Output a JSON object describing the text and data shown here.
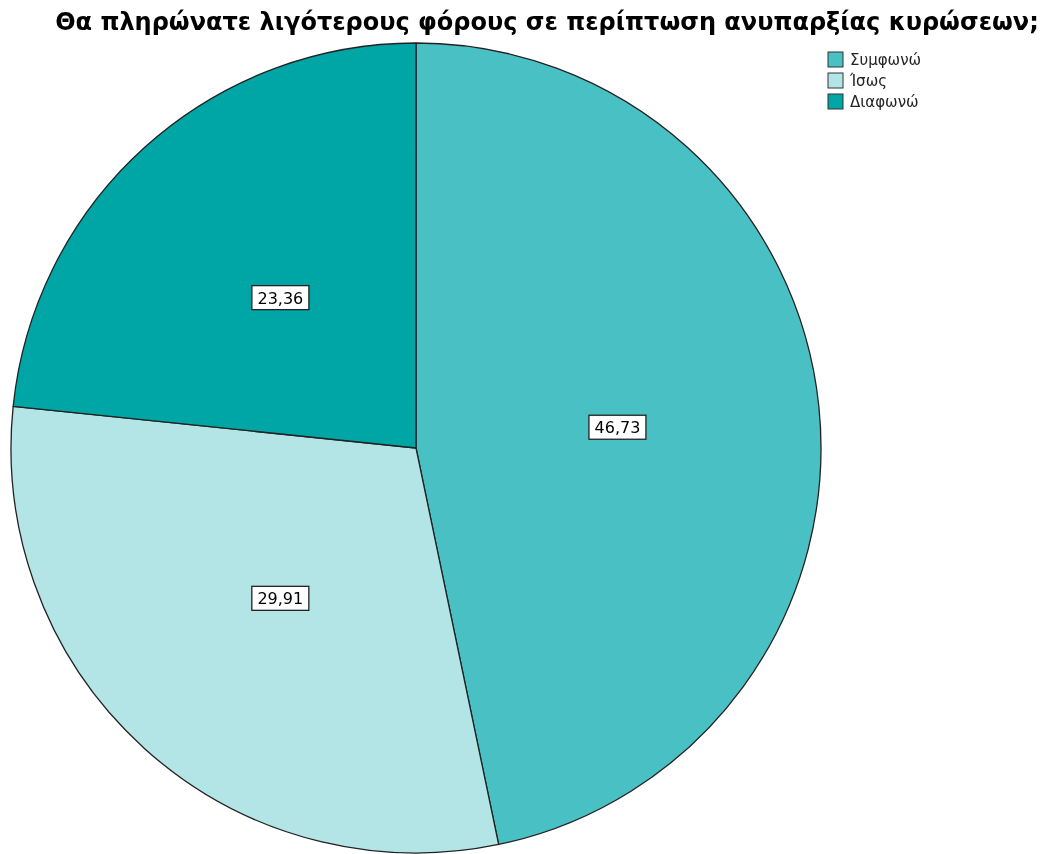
{
  "chart_data": {
    "type": "pie",
    "title": "Θα πληρώνατε λιγότερους φόρους σε περίπτωση ανυπαρξίας κυρώσεων;",
    "categories": [
      "Συμφωνώ",
      "Ίσως",
      "Διαφωνώ"
    ],
    "values": [
      46.73,
      29.91,
      23.36
    ],
    "colors": [
      "#48c0c4",
      "#b3e5e6",
      "#00a5a5"
    ],
    "value_labels": [
      "46,73",
      "29,91",
      "23,36"
    ],
    "legend": "top right"
  }
}
